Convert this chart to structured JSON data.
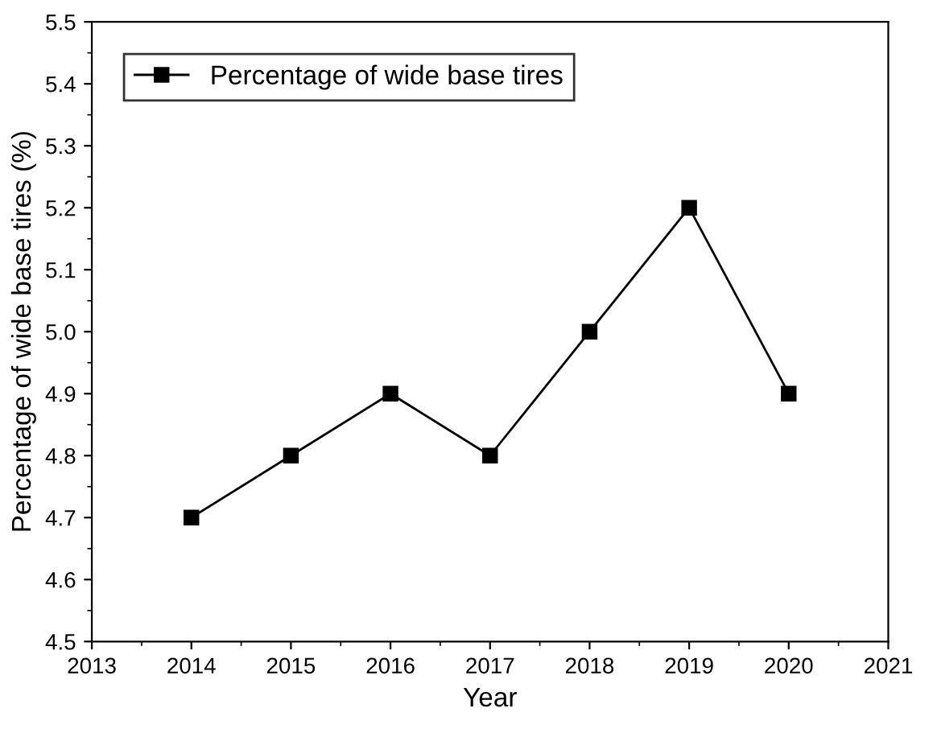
{
  "chart_data": {
    "type": "line",
    "xlabel": "Year",
    "ylabel": "Percentage of wide base tires (%)",
    "x": [
      2014,
      2015,
      2016,
      2017,
      2018,
      2019,
      2020
    ],
    "series": [
      {
        "name": "Percentage of wide base tires",
        "color": "#000000",
        "values": [
          4.7,
          4.8,
          4.9,
          4.8,
          5.0,
          5.2,
          4.9
        ]
      }
    ],
    "xlim": [
      2013,
      2021
    ],
    "xticks": [
      2013,
      2014,
      2015,
      2016,
      2017,
      2018,
      2019,
      2020,
      2021
    ],
    "ylim": [
      4.5,
      5.5
    ],
    "yticks": [
      4.5,
      4.6,
      4.7,
      4.8,
      4.9,
      {
        "value": 5.0,
        "label": "5.0"
      },
      5.1,
      5.2,
      5.3,
      5.4,
      5.5
    ],
    "marker": "square",
    "line_style": "solid",
    "legend": "top left",
    "grid": false
  }
}
